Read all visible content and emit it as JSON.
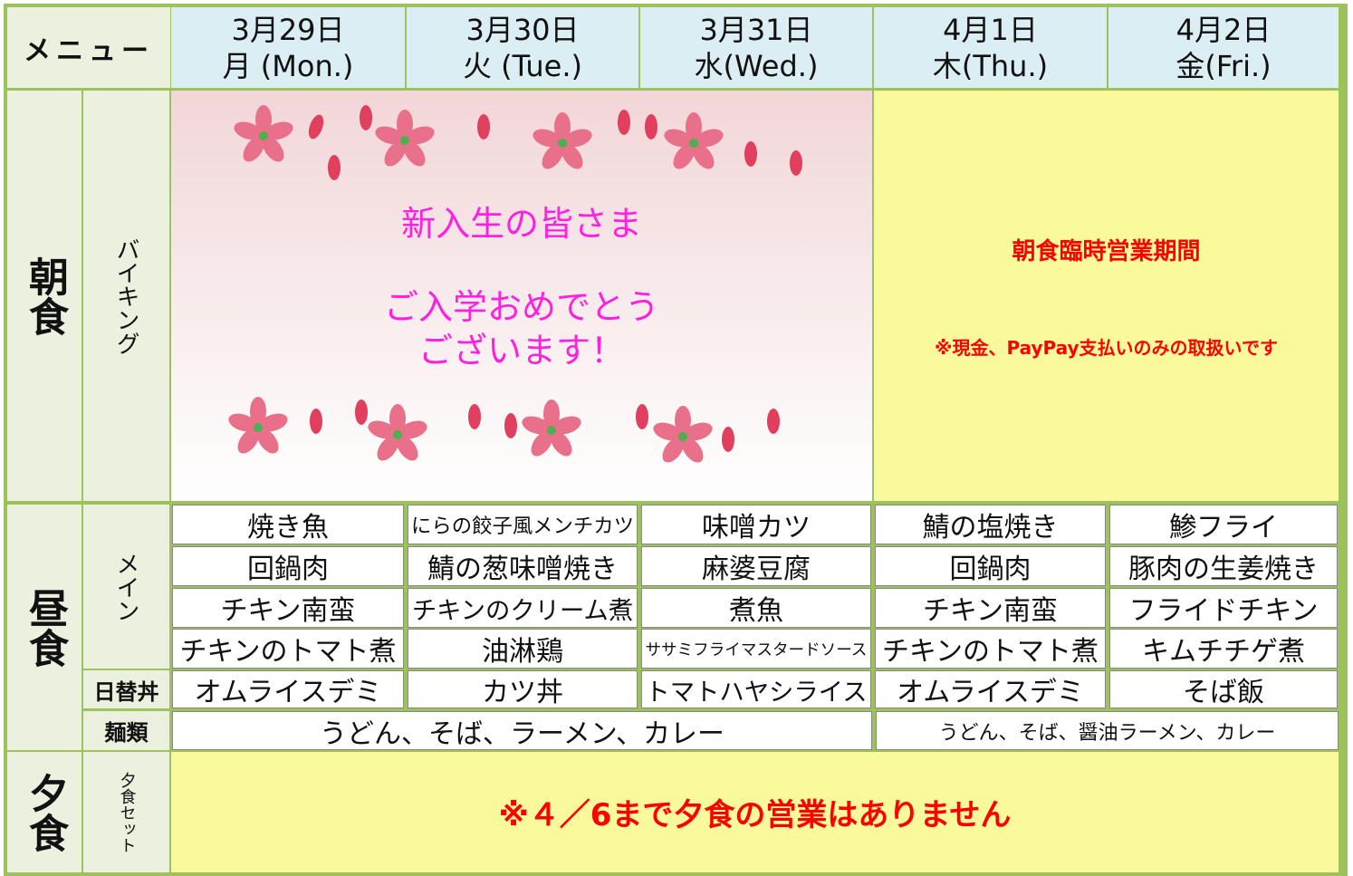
{
  "header": {
    "menu_label": "メニュー",
    "days": [
      {
        "date": "3月29日",
        "weekday": "月 (Mon.)"
      },
      {
        "date": "3月30日",
        "weekday": "火 (Tue.)"
      },
      {
        "date": "3月31日",
        "weekday": "水(Wed.)"
      },
      {
        "date": "4月1日",
        "weekday": "木(Thu.)"
      },
      {
        "date": "4月2日",
        "weekday": "金(Fri.)"
      }
    ]
  },
  "breakfast": {
    "meal": "朝食",
    "type": "バイキング",
    "message": [
      "新入生の皆さま",
      "ご入学おめでとう",
      "ございます！"
    ],
    "notice_title": "朝食臨時営業期間",
    "notice_note": "※現金、PayPay支払いのみの取扱いです"
  },
  "lunch": {
    "meal": "昼食",
    "main_label": "メイン",
    "main": [
      [
        "焼き魚",
        "にらの餃子風メンチカツ",
        "味噌カツ",
        "鯖の塩焼き",
        "鯵フライ"
      ],
      [
        "回鍋肉",
        "鯖の葱味噌焼き",
        "麻婆豆腐",
        "回鍋肉",
        "豚肉の生姜焼き"
      ],
      [
        "チキン南蛮",
        "チキンのクリーム煮",
        "煮魚",
        "チキン南蛮",
        "フライドチキン"
      ],
      [
        "チキンのトマト煮",
        "油淋鶏",
        "ササミフライマスタードソース",
        "チキンのトマト煮",
        "キムチチゲ煮"
      ]
    ],
    "daily_label": "日替丼",
    "daily": [
      "オムライスデミ",
      "カツ丼",
      "トマトハヤシライス",
      "オムライスデミ",
      "そば飯"
    ],
    "noodle_label": "麺類",
    "noodles": [
      "うどん、そば、ラーメン、カレー",
      "うどん、そば、醤油ラーメン、カレー"
    ]
  },
  "dinner": {
    "meal": "夕食",
    "type": "夕食セット",
    "notice": "※４／6まで夕食の営業はありません"
  }
}
